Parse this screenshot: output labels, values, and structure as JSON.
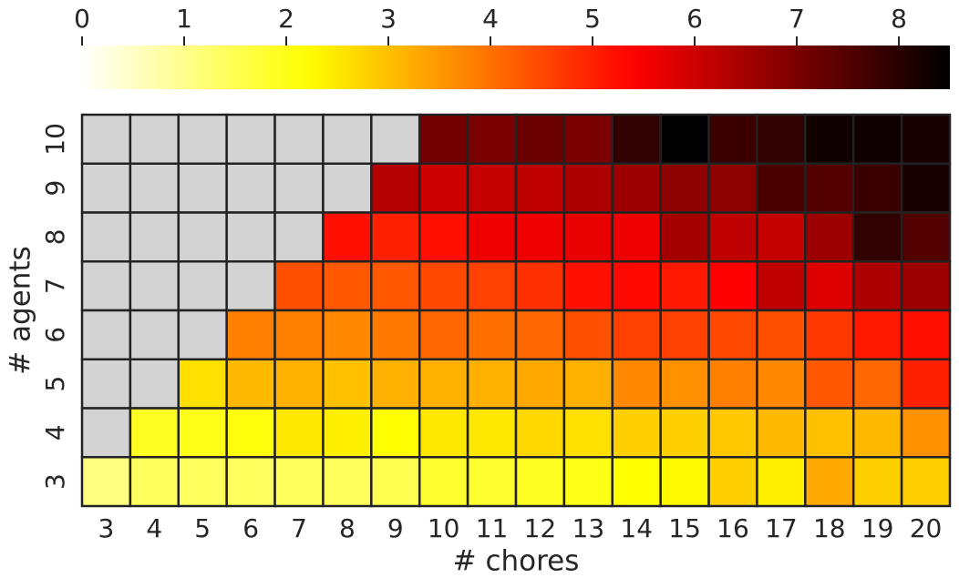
{
  "chart_data": {
    "type": "heatmap",
    "x_label": "# chores",
    "y_label": "# agents",
    "x": [
      "3",
      "4",
      "5",
      "6",
      "7",
      "8",
      "9",
      "10",
      "11",
      "12",
      "13",
      "14",
      "15",
      "16",
      "17",
      "18",
      "19",
      "20"
    ],
    "y": [
      "10",
      "9",
      "8",
      "7",
      "6",
      "5",
      "4",
      "3"
    ],
    "values": [
      [
        null,
        null,
        null,
        null,
        null,
        null,
        null,
        7.1,
        7.0,
        7.2,
        7.0,
        7.9,
        8.5,
        7.8,
        7.9,
        8.3,
        8.3,
        8.2
      ],
      [
        null,
        null,
        null,
        null,
        null,
        null,
        6.3,
        6.0,
        6.1,
        6.2,
        6.4,
        6.6,
        6.8,
        6.8,
        7.6,
        7.5,
        7.8,
        8.2
      ],
      [
        null,
        null,
        null,
        null,
        null,
        5.2,
        5.0,
        5.2,
        5.6,
        5.6,
        5.7,
        5.6,
        6.5,
        6.2,
        6.1,
        6.6,
        7.9,
        7.5
      ],
      [
        null,
        null,
        null,
        null,
        4.4,
        4.3,
        4.3,
        4.5,
        4.6,
        4.8,
        5.2,
        5.3,
        5.1,
        5.4,
        6.2,
        5.8,
        6.4,
        6.6
      ],
      [
        null,
        null,
        null,
        3.8,
        3.8,
        3.7,
        3.9,
        4.1,
        4.0,
        4.1,
        4.4,
        4.6,
        4.6,
        4.5,
        4.4,
        4.7,
        5.1,
        5.2
      ],
      [
        null,
        null,
        2.6,
        3.1,
        3.2,
        3.0,
        3.2,
        3.2,
        3.2,
        3.3,
        3.2,
        3.7,
        3.6,
        3.8,
        3.7,
        4.3,
        4.1,
        5.0
      ],
      [
        null,
        1.9,
        2.0,
        2.1,
        2.5,
        2.4,
        2.2,
        2.5,
        2.5,
        2.7,
        2.6,
        2.8,
        2.8,
        2.9,
        3.1,
        3.0,
        3.1,
        3.6
      ],
      [
        1.1,
        1.4,
        1.4,
        1.4,
        1.4,
        1.4,
        1.5,
        1.8,
        1.8,
        1.9,
        2.0,
        2.2,
        2.3,
        2.8,
        2.4,
        3.3,
        2.8,
        2.8
      ]
    ],
    "colormap": "hot_r",
    "missing_color": "#d3d3d3",
    "edge_color": "#222222",
    "clim": [
      0,
      8.5
    ],
    "cticks": [
      0,
      1,
      2,
      3,
      4,
      5,
      6,
      7,
      8
    ]
  }
}
